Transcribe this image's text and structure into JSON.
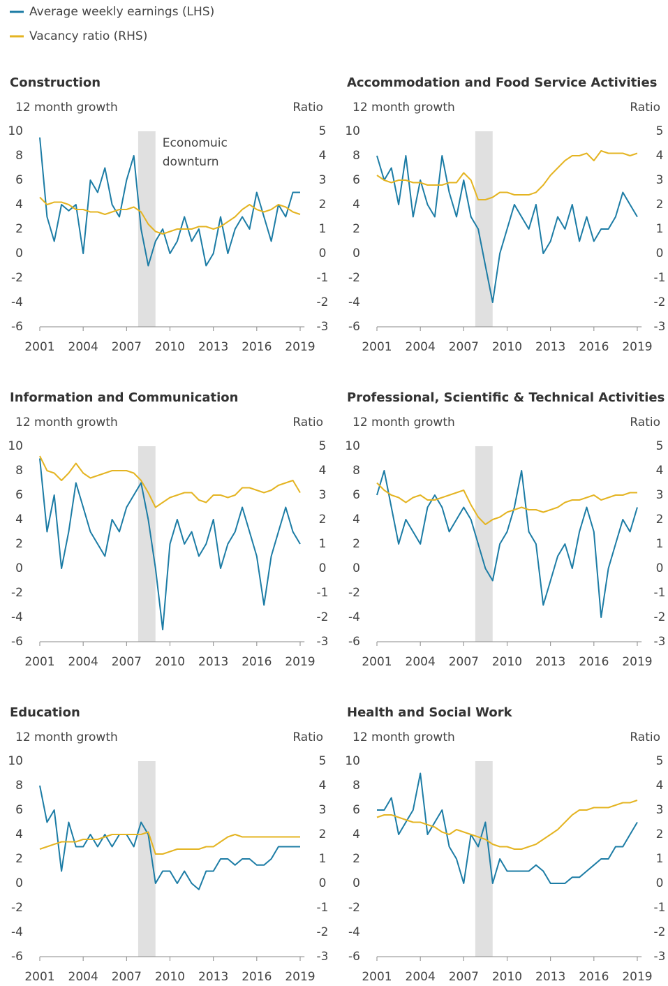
{
  "legend": [
    {
      "name": "Average weekly earnings (LHS)",
      "color": "#1c7ca5"
    },
    {
      "name": "Vacancy ratio (RHS)",
      "color": "#e4b422"
    }
  ],
  "chart_data": [
    {
      "type": "line",
      "title": "Construction",
      "ylabel": "12 month growth",
      "y2label": "Ratio",
      "annotation": [
        "Economuic",
        "downturn"
      ],
      "shaded_x": [
        2007.8,
        2009
      ],
      "xlim": [
        2001,
        2019.3
      ],
      "xticks": [
        2001,
        2004,
        2007,
        2010,
        2013,
        2016,
        2019
      ],
      "ylim": [
        -6,
        10
      ],
      "yticks": [
        -6,
        -4,
        -2,
        0,
        2,
        4,
        6,
        8,
        10
      ],
      "y2lim": [
        -3,
        5
      ],
      "y2ticks": [
        -3,
        -2,
        -1,
        0,
        1,
        2,
        3,
        4,
        5
      ],
      "x": [
        2001,
        2001.5,
        2002,
        2002.5,
        2003,
        2003.5,
        2004,
        2004.5,
        2005,
        2005.5,
        2006,
        2006.5,
        2007,
        2007.5,
        2008,
        2008.5,
        2009,
        2009.5,
        2010,
        2010.5,
        2011,
        2011.5,
        2012,
        2012.5,
        2013,
        2013.5,
        2014,
        2014.5,
        2015,
        2015.5,
        2016,
        2016.5,
        2017,
        2017.5,
        2018,
        2018.5,
        2019
      ],
      "series": [
        {
          "color": "#1c7ca5",
          "values": [
            9.5,
            3,
            1,
            4,
            3.5,
            4,
            0,
            6,
            5,
            7,
            4,
            3,
            6,
            8,
            2,
            -1,
            1,
            2,
            0,
            1,
            3,
            1,
            2,
            -1,
            0,
            3,
            0,
            2,
            3,
            2,
            5,
            3,
            1,
            4,
            3,
            5,
            5
          ]
        },
        {
          "color": "#e4b422",
          "axis": "y2",
          "values": [
            2.3,
            2.0,
            2.1,
            2.1,
            2.0,
            1.8,
            1.8,
            1.7,
            1.7,
            1.6,
            1.7,
            1.8,
            1.8,
            1.9,
            1.7,
            1.2,
            0.9,
            0.8,
            0.9,
            1.0,
            1.0,
            1.0,
            1.1,
            1.1,
            1.0,
            1.1,
            1.3,
            1.5,
            1.8,
            2.0,
            1.8,
            1.7,
            1.8,
            2.0,
            1.9,
            1.7,
            1.6
          ]
        }
      ]
    },
    {
      "type": "line",
      "title": "Accommodation and Food Service Activities",
      "ylabel": "12 month growth",
      "y2label": "Ratio",
      "shaded_x": [
        2007.8,
        2009
      ],
      "xlim": [
        2001,
        2019.3
      ],
      "xticks": [
        2001,
        2004,
        2007,
        2010,
        2013,
        2016,
        2019
      ],
      "ylim": [
        -6,
        10
      ],
      "yticks": [
        -6,
        -4,
        -2,
        0,
        2,
        4,
        6,
        8,
        10
      ],
      "y2lim": [
        -3,
        5
      ],
      "y2ticks": [
        -3,
        -2,
        -1,
        0,
        1,
        2,
        3,
        4,
        5
      ],
      "x": [
        2001,
        2001.5,
        2002,
        2002.5,
        2003,
        2003.5,
        2004,
        2004.5,
        2005,
        2005.5,
        2006,
        2006.5,
        2007,
        2007.5,
        2008,
        2008.5,
        2009,
        2009.5,
        2010,
        2010.5,
        2011,
        2011.5,
        2012,
        2012.5,
        2013,
        2013.5,
        2014,
        2014.5,
        2015,
        2015.5,
        2016,
        2016.5,
        2017,
        2017.5,
        2018,
        2018.5,
        2019
      ],
      "series": [
        {
          "color": "#1c7ca5",
          "values": [
            8,
            6,
            7,
            4,
            8,
            3,
            6,
            4,
            3,
            8,
            5,
            3,
            6,
            3,
            2,
            -1,
            -4,
            0,
            2,
            4,
            3,
            2,
            4,
            0,
            1,
            3,
            2,
            4,
            1,
            3,
            1,
            2,
            2,
            3,
            5,
            4,
            3
          ]
        },
        {
          "color": "#e4b422",
          "axis": "y2",
          "values": [
            3.2,
            3.0,
            2.9,
            3.0,
            3.0,
            2.9,
            2.9,
            2.8,
            2.8,
            2.8,
            2.9,
            2.9,
            3.3,
            3.0,
            2.2,
            2.2,
            2.3,
            2.5,
            2.5,
            2.4,
            2.4,
            2.4,
            2.5,
            2.8,
            3.2,
            3.5,
            3.8,
            4.0,
            4.0,
            4.1,
            3.8,
            4.2,
            4.1,
            4.1,
            4.1,
            4.0,
            4.1
          ]
        }
      ]
    },
    {
      "type": "line",
      "title": "Information and Communication",
      "ylabel": "12 month growth",
      "y2label": "Ratio",
      "shaded_x": [
        2007.8,
        2009
      ],
      "xlim": [
        2001,
        2019.3
      ],
      "xticks": [
        2001,
        2004,
        2007,
        2010,
        2013,
        2016,
        2019
      ],
      "ylim": [
        -6,
        10
      ],
      "yticks": [
        -6,
        -4,
        -2,
        0,
        2,
        4,
        6,
        8,
        10
      ],
      "y2lim": [
        -3,
        5
      ],
      "y2ticks": [
        -3,
        -2,
        -1,
        0,
        1,
        2,
        3,
        4,
        5
      ],
      "x": [
        2001,
        2001.5,
        2002,
        2002.5,
        2003,
        2003.5,
        2004,
        2004.5,
        2005,
        2005.5,
        2006,
        2006.5,
        2007,
        2007.5,
        2008,
        2008.5,
        2009,
        2009.5,
        2010,
        2010.5,
        2011,
        2011.5,
        2012,
        2012.5,
        2013,
        2013.5,
        2014,
        2014.5,
        2015,
        2015.5,
        2016,
        2016.5,
        2017,
        2017.5,
        2018,
        2018.5,
        2019
      ],
      "series": [
        {
          "color": "#1c7ca5",
          "values": [
            9,
            3,
            6,
            0,
            3,
            7,
            5,
            3,
            2,
            1,
            4,
            3,
            5,
            6,
            7,
            4,
            0,
            -5,
            2,
            4,
            2,
            3,
            1,
            2,
            4,
            0,
            2,
            3,
            5,
            3,
            1,
            -3,
            1,
            3,
            5,
            3,
            2
          ]
        },
        {
          "color": "#e4b422",
          "axis": "y2",
          "values": [
            4.6,
            4.0,
            3.9,
            3.6,
            3.9,
            4.3,
            3.9,
            3.7,
            3.8,
            3.9,
            4.0,
            4.0,
            4.0,
            3.9,
            3.6,
            3.1,
            2.5,
            2.7,
            2.9,
            3.0,
            3.1,
            3.1,
            2.8,
            2.7,
            3.0,
            3.0,
            2.9,
            3.0,
            3.3,
            3.3,
            3.2,
            3.1,
            3.2,
            3.4,
            3.5,
            3.6,
            3.1
          ]
        }
      ]
    },
    {
      "type": "line",
      "title": "Professional, Scientific & Technical Activities",
      "ylabel": "12 month growth",
      "y2label": "Ratio",
      "shaded_x": [
        2007.8,
        2009
      ],
      "xlim": [
        2001,
        2019.3
      ],
      "xticks": [
        2001,
        2004,
        2007,
        2010,
        2013,
        2016,
        2019
      ],
      "ylim": [
        -6,
        10
      ],
      "yticks": [
        -6,
        -4,
        -2,
        0,
        2,
        4,
        6,
        8,
        10
      ],
      "y2lim": [
        -3,
        5
      ],
      "y2ticks": [
        -3,
        -2,
        -1,
        0,
        1,
        2,
        3,
        4,
        5
      ],
      "x": [
        2001,
        2001.5,
        2002,
        2002.5,
        2003,
        2003.5,
        2004,
        2004.5,
        2005,
        2005.5,
        2006,
        2006.5,
        2007,
        2007.5,
        2008,
        2008.5,
        2009,
        2009.5,
        2010,
        2010.5,
        2011,
        2011.5,
        2012,
        2012.5,
        2013,
        2013.5,
        2014,
        2014.5,
        2015,
        2015.5,
        2016,
        2016.5,
        2017,
        2017.5,
        2018,
        2018.5,
        2019
      ],
      "series": [
        {
          "color": "#1c7ca5",
          "values": [
            6,
            8,
            5,
            2,
            4,
            3,
            2,
            5,
            6,
            5,
            3,
            4,
            5,
            4,
            2,
            0,
            -1,
            2,
            3,
            5,
            8,
            3,
            2,
            -3,
            -1,
            1,
            2,
            0,
            3,
            5,
            3,
            -4,
            0,
            2,
            4,
            3,
            5
          ]
        },
        {
          "color": "#e4b422",
          "axis": "y2",
          "values": [
            3.5,
            3.2,
            3.0,
            2.9,
            2.7,
            2.9,
            3.0,
            2.8,
            2.8,
            2.9,
            3.0,
            3.1,
            3.2,
            2.6,
            2.1,
            1.8,
            2.0,
            2.1,
            2.3,
            2.4,
            2.5,
            2.4,
            2.4,
            2.3,
            2.4,
            2.5,
            2.7,
            2.8,
            2.8,
            2.9,
            3.0,
            2.8,
            2.9,
            3.0,
            3.0,
            3.1,
            3.1
          ]
        }
      ]
    },
    {
      "type": "line",
      "title": "Education",
      "ylabel": "12 month growth",
      "y2label": "Ratio",
      "shaded_x": [
        2007.8,
        2009
      ],
      "xlim": [
        2001,
        2019.3
      ],
      "xticks": [
        2001,
        2004,
        2007,
        2010,
        2013,
        2016,
        2019
      ],
      "ylim": [
        -6,
        10
      ],
      "yticks": [
        -6,
        -4,
        -2,
        0,
        2,
        4,
        6,
        8,
        10
      ],
      "y2lim": [
        -3,
        5
      ],
      "y2ticks": [
        -3,
        -2,
        -1,
        0,
        1,
        2,
        3,
        4,
        5
      ],
      "x": [
        2001,
        2001.5,
        2002,
        2002.5,
        2003,
        2003.5,
        2004,
        2004.5,
        2005,
        2005.5,
        2006,
        2006.5,
        2007,
        2007.5,
        2008,
        2008.5,
        2009,
        2009.5,
        2010,
        2010.5,
        2011,
        2011.5,
        2012,
        2012.5,
        2013,
        2013.5,
        2014,
        2014.5,
        2015,
        2015.5,
        2016,
        2016.5,
        2017,
        2017.5,
        2018,
        2018.5,
        2019
      ],
      "series": [
        {
          "color": "#1c7ca5",
          "values": [
            8,
            5,
            6,
            1,
            5,
            3,
            3,
            4,
            3,
            4,
            3,
            4,
            4,
            3,
            5,
            4,
            0,
            1,
            1,
            0,
            1,
            0,
            -0.5,
            1,
            1,
            2,
            2,
            1.5,
            2,
            2,
            1.5,
            1.5,
            2,
            3,
            3,
            3,
            3
          ]
        },
        {
          "color": "#e4b422",
          "axis": "y2",
          "values": [
            1.4,
            1.5,
            1.6,
            1.7,
            1.7,
            1.7,
            1.8,
            1.8,
            1.8,
            1.9,
            2.0,
            2.0,
            2.0,
            2.0,
            2.0,
            2.1,
            1.2,
            1.2,
            1.3,
            1.4,
            1.4,
            1.4,
            1.4,
            1.5,
            1.5,
            1.7,
            1.9,
            2.0,
            1.9,
            1.9,
            1.9,
            1.9,
            1.9,
            1.9,
            1.9,
            1.9,
            1.9
          ]
        }
      ]
    },
    {
      "type": "line",
      "title": "Health and Social Work",
      "ylabel": "12 month growth",
      "y2label": "Ratio",
      "shaded_x": [
        2007.8,
        2009
      ],
      "xlim": [
        2001,
        2019.3
      ],
      "xticks": [
        2001,
        2004,
        2007,
        2010,
        2013,
        2016,
        2019
      ],
      "ylim": [
        -6,
        10
      ],
      "yticks": [
        -6,
        -4,
        -2,
        0,
        2,
        4,
        6,
        8,
        10
      ],
      "y2lim": [
        -3,
        5
      ],
      "y2ticks": [
        -3,
        -2,
        -1,
        0,
        1,
        2,
        3,
        4,
        5
      ],
      "x": [
        2001,
        2001.5,
        2002,
        2002.5,
        2003,
        2003.5,
        2004,
        2004.5,
        2005,
        2005.5,
        2006,
        2006.5,
        2007,
        2007.5,
        2008,
        2008.5,
        2009,
        2009.5,
        2010,
        2010.5,
        2011,
        2011.5,
        2012,
        2012.5,
        2013,
        2013.5,
        2014,
        2014.5,
        2015,
        2015.5,
        2016,
        2016.5,
        2017,
        2017.5,
        2018,
        2018.5,
        2019
      ],
      "series": [
        {
          "color": "#1c7ca5",
          "values": [
            6,
            6,
            7,
            4,
            5,
            6,
            9,
            4,
            5,
            6,
            3,
            2,
            0,
            4,
            3,
            5,
            0,
            2,
            1,
            1,
            1,
            1,
            1.5,
            1,
            0,
            0,
            0,
            0.5,
            0.5,
            1,
            1.5,
            2,
            2,
            3,
            3,
            4,
            5
          ]
        },
        {
          "color": "#e4b422",
          "axis": "y2",
          "values": [
            2.7,
            2.8,
            2.8,
            2.7,
            2.6,
            2.5,
            2.5,
            2.4,
            2.3,
            2.1,
            2.0,
            2.2,
            2.1,
            2.0,
            1.9,
            1.8,
            1.6,
            1.5,
            1.5,
            1.4,
            1.4,
            1.5,
            1.6,
            1.8,
            2.0,
            2.2,
            2.5,
            2.8,
            3.0,
            3.0,
            3.1,
            3.1,
            3.1,
            3.2,
            3.3,
            3.3,
            3.4
          ]
        }
      ]
    }
  ]
}
